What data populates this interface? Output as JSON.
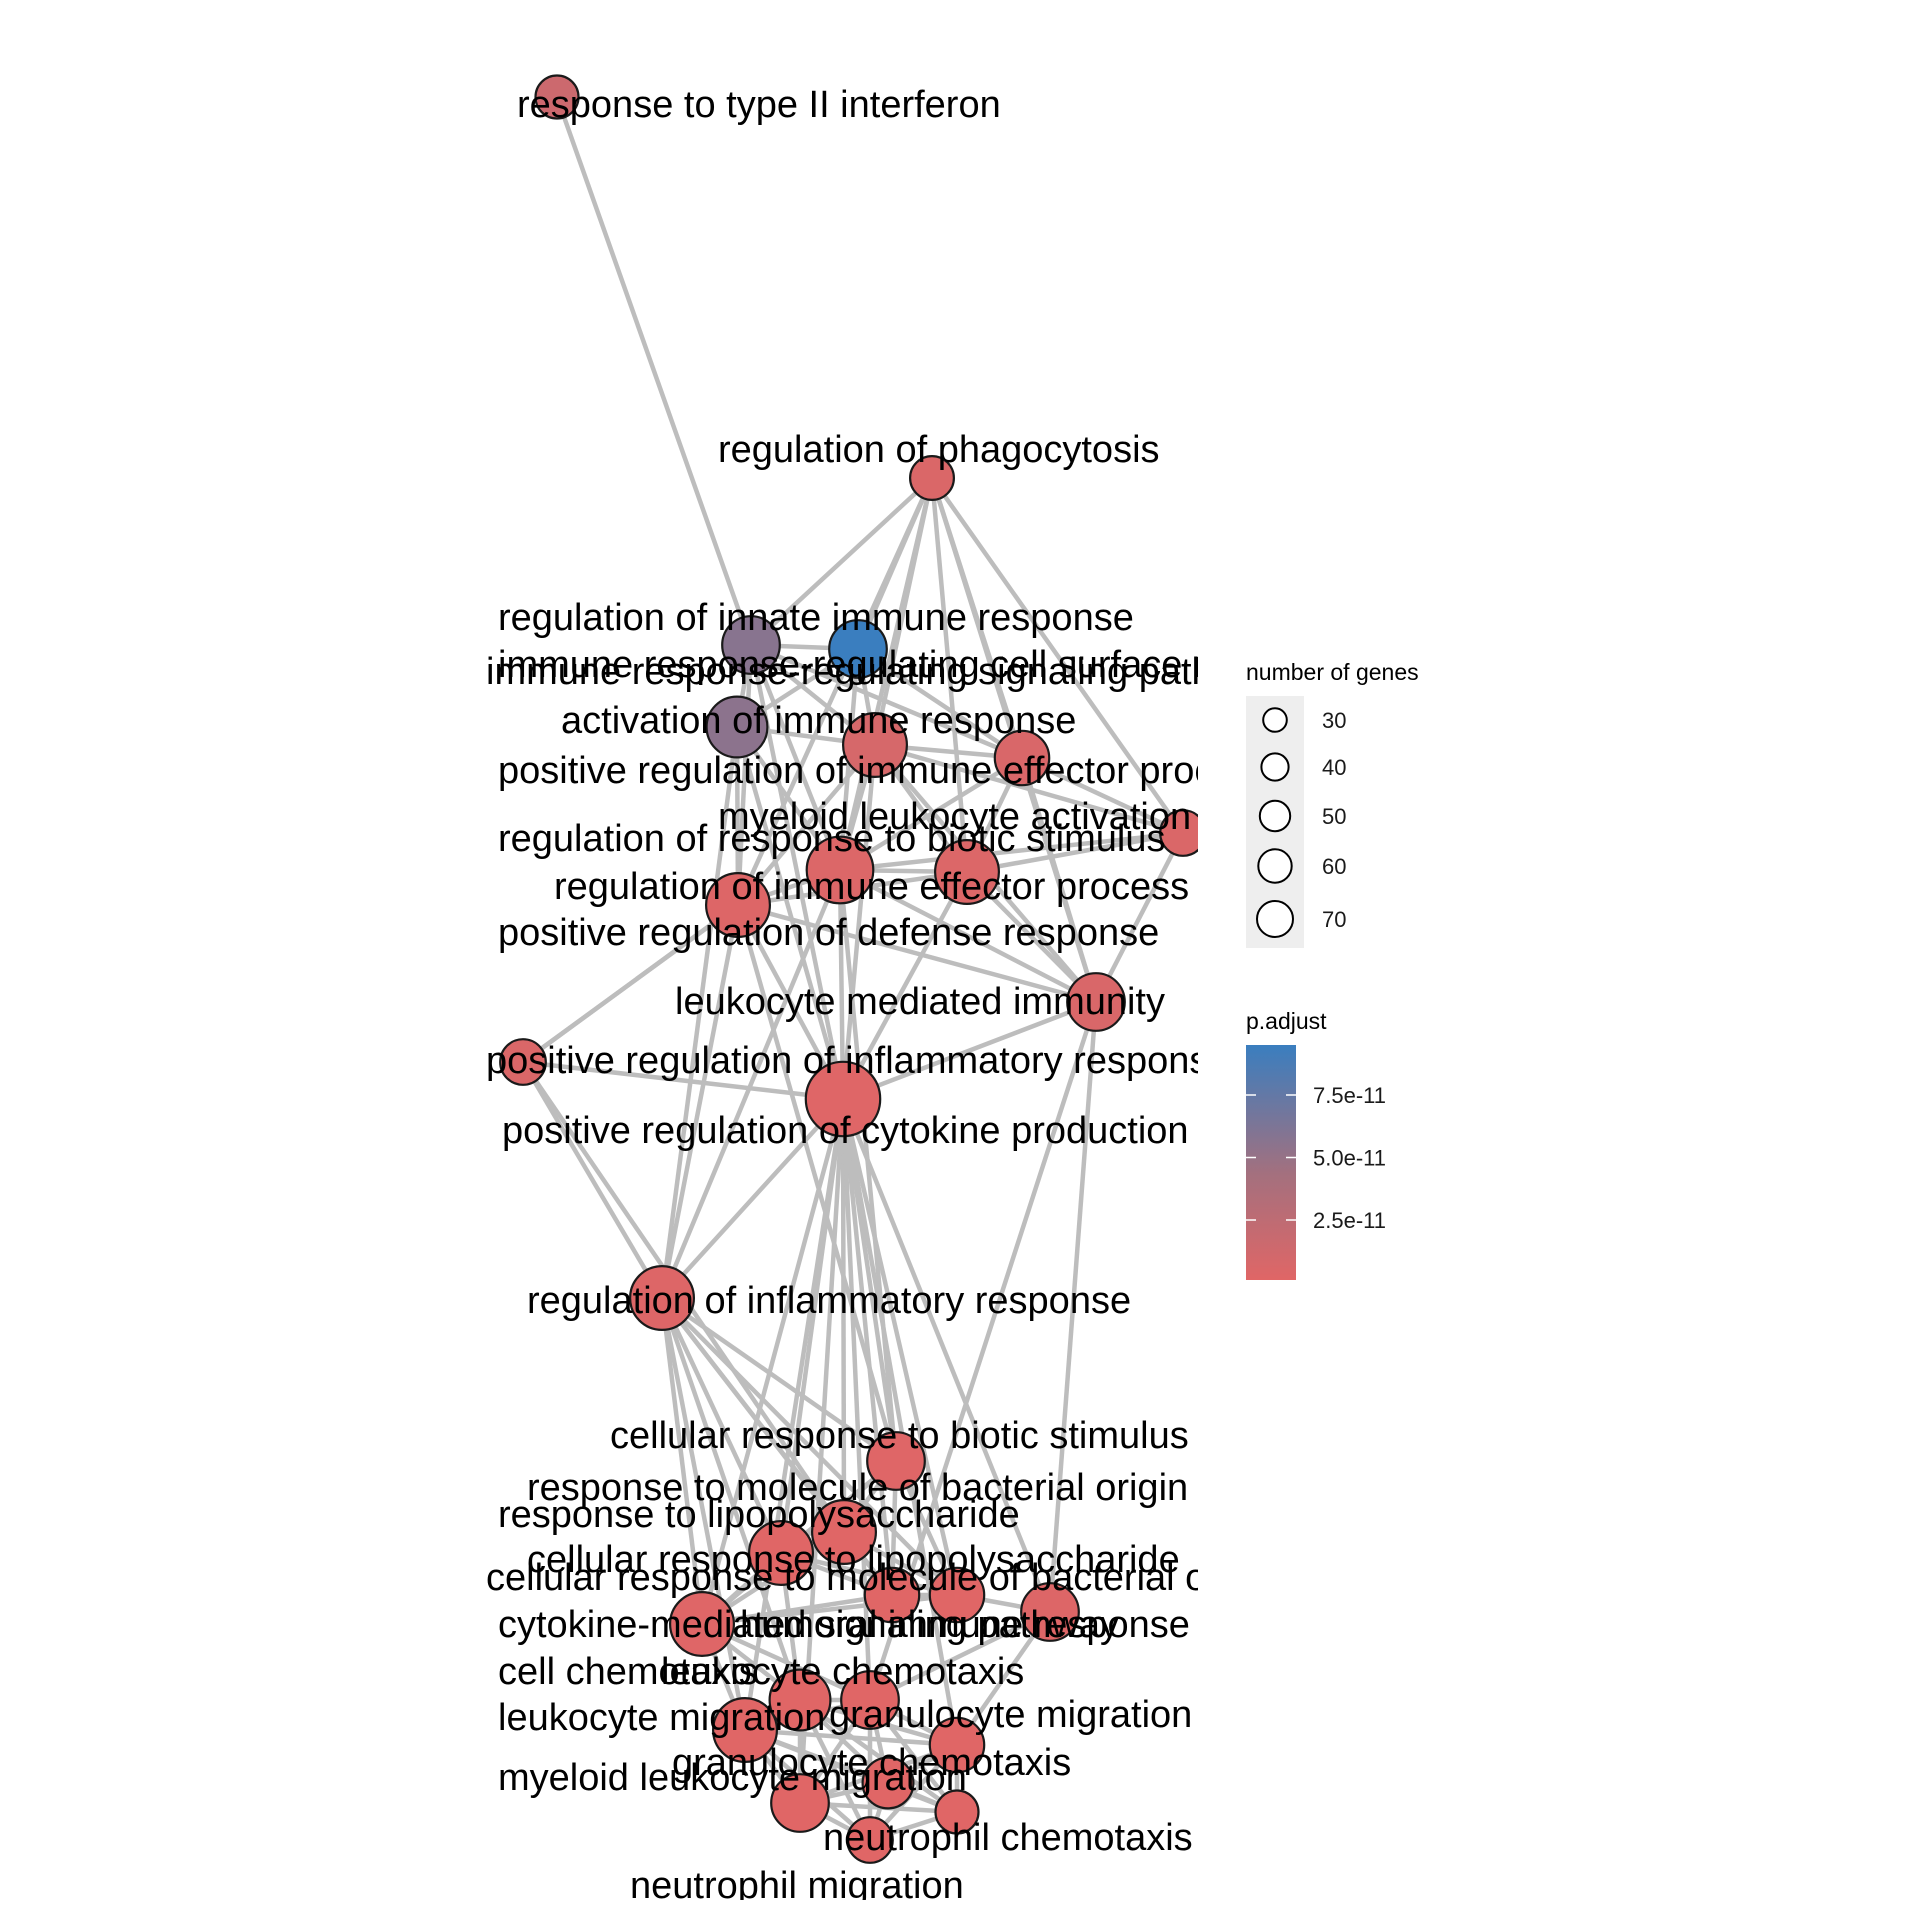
{
  "graph": {
    "nodes": [
      {
        "id": "n1",
        "label": "response to type II interferon",
        "genes": 25,
        "p_adjust": 1.5e-11
      },
      {
        "id": "n2",
        "label": "regulation of phagocytosis",
        "genes": 26,
        "p_adjust": 5e-12
      },
      {
        "id": "n3",
        "label": "regulation of innate immune response",
        "genes": 45,
        "p_adjust": 5.7e-11
      },
      {
        "id": "n4",
        "label": "immune response-regulating cell surface receptor signaling pathway",
        "genes": 45,
        "p_adjust": 9.5e-11
      },
      {
        "id": "n5",
        "label": "immune response-regulating signaling pathway",
        "genes": 50,
        "p_adjust": 5.5e-11
      },
      {
        "id": "n6",
        "label": "activation of immune response",
        "genes": 55,
        "p_adjust": 8e-12
      },
      {
        "id": "n7",
        "label": "positive regulation of immune effector process",
        "genes": 40,
        "p_adjust": 6e-12
      },
      {
        "id": "n8",
        "label": "myeloid leukocyte activation",
        "genes": 28,
        "p_adjust": 5e-12
      },
      {
        "id": "n9",
        "label": "regulation of response to biotic stimulus",
        "genes": 60,
        "p_adjust": 4e-12
      },
      {
        "id": "n10",
        "label": "regulation of immune effector process",
        "genes": 55,
        "p_adjust": 4e-12
      },
      {
        "id": "n11",
        "label": "positive regulation of defense response",
        "genes": 55,
        "p_adjust": 3e-12
      },
      {
        "id": "n12",
        "label": "leukocyte mediated immunity",
        "genes": 45,
        "p_adjust": 6e-12
      },
      {
        "id": "n13",
        "label": "positive regulation of inflammatory response",
        "genes": 28,
        "p_adjust": 5e-12
      },
      {
        "id": "n14",
        "label": "positive regulation of cytokine production",
        "genes": 75,
        "p_adjust": 2e-12
      },
      {
        "id": "n15",
        "label": "regulation of inflammatory response",
        "genes": 55,
        "p_adjust": 3e-12
      },
      {
        "id": "n16",
        "label": "cellular response to biotic stimulus",
        "genes": 45,
        "p_adjust": 2e-12
      },
      {
        "id": "n17",
        "label": "response to molecule of bacterial origin",
        "genes": 55,
        "p_adjust": 1e-12
      },
      {
        "id": "n18",
        "label": "response to lipopolysaccharide",
        "genes": 55,
        "p_adjust": 1e-12
      },
      {
        "id": "n19",
        "label": "cellular response to lipopolysaccharide",
        "genes": 40,
        "p_adjust": 1e-12
      },
      {
        "id": "n20",
        "label": "cellular response to molecule of bacterial origin",
        "genes": 40,
        "p_adjust": 1e-12
      },
      {
        "id": "n21",
        "label": "humoral immune response",
        "genes": 45,
        "p_adjust": 3e-12
      },
      {
        "id": "n22",
        "label": "cytokine-mediated signaling pathway",
        "genes": 55,
        "p_adjust": 2e-12
      },
      {
        "id": "n23",
        "label": "cell chemotaxis",
        "genes": 50,
        "p_adjust": 1e-12
      },
      {
        "id": "n24",
        "label": "leukocyte chemotaxis",
        "genes": 45,
        "p_adjust": 1e-12
      },
      {
        "id": "n25",
        "label": "leukocyte migration",
        "genes": 55,
        "p_adjust": 1e-12
      },
      {
        "id": "n26",
        "label": "granulocyte migration",
        "genes": 40,
        "p_adjust": 1e-12
      },
      {
        "id": "n27",
        "label": "granulocyte chemotaxis",
        "genes": 35,
        "p_adjust": 1e-12
      },
      {
        "id": "n28",
        "label": "myeloid leukocyte migration",
        "genes": 45,
        "p_adjust": 1e-12
      },
      {
        "id": "n29",
        "label": "neutrophil chemotaxis",
        "genes": 25,
        "p_adjust": 1e-12
      },
      {
        "id": "n30",
        "label": "neutrophil migration",
        "genes": 28,
        "p_adjust": 1e-12
      }
    ],
    "edges": [
      [
        "n1",
        "n3"
      ],
      [
        "n2",
        "n3"
      ],
      [
        "n2",
        "n4"
      ],
      [
        "n2",
        "n6"
      ],
      [
        "n2",
        "n7"
      ],
      [
        "n2",
        "n9"
      ],
      [
        "n2",
        "n10"
      ],
      [
        "n2",
        "n12"
      ],
      [
        "n2",
        "n8"
      ],
      [
        "n2",
        "n11"
      ],
      [
        "n3",
        "n4"
      ],
      [
        "n3",
        "n5"
      ],
      [
        "n3",
        "n6"
      ],
      [
        "n3",
        "n9"
      ],
      [
        "n3",
        "n11"
      ],
      [
        "n3",
        "n7"
      ],
      [
        "n3",
        "n14"
      ],
      [
        "n4",
        "n5"
      ],
      [
        "n4",
        "n6"
      ],
      [
        "n4",
        "n7"
      ],
      [
        "n4",
        "n9"
      ],
      [
        "n5",
        "n6"
      ],
      [
        "n5",
        "n9"
      ],
      [
        "n5",
        "n11"
      ],
      [
        "n5",
        "n14"
      ],
      [
        "n5",
        "n15"
      ],
      [
        "n6",
        "n7"
      ],
      [
        "n6",
        "n9"
      ],
      [
        "n6",
        "n11"
      ],
      [
        "n6",
        "n14"
      ],
      [
        "n6",
        "n10"
      ],
      [
        "n6",
        "n8"
      ],
      [
        "n6",
        "n12"
      ],
      [
        "n7",
        "n10"
      ],
      [
        "n7",
        "n12"
      ],
      [
        "n7",
        "n8"
      ],
      [
        "n7",
        "n9"
      ],
      [
        "n8",
        "n12"
      ],
      [
        "n8",
        "n10"
      ],
      [
        "n8",
        "n9"
      ],
      [
        "n9",
        "n10"
      ],
      [
        "n9",
        "n11"
      ],
      [
        "n9",
        "n14"
      ],
      [
        "n9",
        "n15"
      ],
      [
        "n9",
        "n12"
      ],
      [
        "n9",
        "n16"
      ],
      [
        "n10",
        "n12"
      ],
      [
        "n10",
        "n11"
      ],
      [
        "n10",
        "n14"
      ],
      [
        "n11",
        "n13"
      ],
      [
        "n11",
        "n14"
      ],
      [
        "n11",
        "n15"
      ],
      [
        "n11",
        "n12"
      ],
      [
        "n11",
        "n16"
      ],
      [
        "n12",
        "n14"
      ],
      [
        "n12",
        "n21"
      ],
      [
        "n12",
        "n24"
      ],
      [
        "n13",
        "n14"
      ],
      [
        "n13",
        "n15"
      ],
      [
        "n13",
        "n11"
      ],
      [
        "n13",
        "n17"
      ],
      [
        "n14",
        "n15"
      ],
      [
        "n14",
        "n16"
      ],
      [
        "n14",
        "n17"
      ],
      [
        "n14",
        "n18"
      ],
      [
        "n14",
        "n19"
      ],
      [
        "n14",
        "n20"
      ],
      [
        "n14",
        "n22"
      ],
      [
        "n14",
        "n21"
      ],
      [
        "n14",
        "n24"
      ],
      [
        "n14",
        "n25"
      ],
      [
        "n14",
        "n26"
      ],
      [
        "n14",
        "n28"
      ],
      [
        "n15",
        "n16"
      ],
      [
        "n15",
        "n17"
      ],
      [
        "n15",
        "n18"
      ],
      [
        "n15",
        "n19"
      ],
      [
        "n15",
        "n20"
      ],
      [
        "n15",
        "n22"
      ],
      [
        "n15",
        "n23"
      ],
      [
        "n15",
        "n25"
      ],
      [
        "n16",
        "n17"
      ],
      [
        "n16",
        "n18"
      ],
      [
        "n16",
        "n19"
      ],
      [
        "n16",
        "n20"
      ],
      [
        "n16",
        "n22"
      ],
      [
        "n17",
        "n18"
      ],
      [
        "n17",
        "n19"
      ],
      [
        "n17",
        "n20"
      ],
      [
        "n17",
        "n22"
      ],
      [
        "n18",
        "n19"
      ],
      [
        "n18",
        "n20"
      ],
      [
        "n18",
        "n22"
      ],
      [
        "n18",
        "n23"
      ],
      [
        "n19",
        "n20"
      ],
      [
        "n19",
        "n22"
      ],
      [
        "n20",
        "n22"
      ],
      [
        "n20",
        "n21"
      ],
      [
        "n21",
        "n24"
      ],
      [
        "n21",
        "n26"
      ],
      [
        "n22",
        "n23"
      ],
      [
        "n22",
        "n25"
      ],
      [
        "n22",
        "n24"
      ],
      [
        "n23",
        "n24"
      ],
      [
        "n23",
        "n25"
      ],
      [
        "n23",
        "n26"
      ],
      [
        "n23",
        "n27"
      ],
      [
        "n23",
        "n28"
      ],
      [
        "n23",
        "n29"
      ],
      [
        "n23",
        "n30"
      ],
      [
        "n24",
        "n25"
      ],
      [
        "n24",
        "n26"
      ],
      [
        "n24",
        "n27"
      ],
      [
        "n24",
        "n28"
      ],
      [
        "n24",
        "n29"
      ],
      [
        "n24",
        "n30"
      ],
      [
        "n25",
        "n26"
      ],
      [
        "n25",
        "n27"
      ],
      [
        "n25",
        "n28"
      ],
      [
        "n25",
        "n29"
      ],
      [
        "n25",
        "n30"
      ],
      [
        "n26",
        "n27"
      ],
      [
        "n26",
        "n28"
      ],
      [
        "n26",
        "n29"
      ],
      [
        "n26",
        "n30"
      ],
      [
        "n27",
        "n28"
      ],
      [
        "n27",
        "n29"
      ],
      [
        "n27",
        "n30"
      ],
      [
        "n28",
        "n29"
      ],
      [
        "n28",
        "n30"
      ],
      [
        "n29",
        "n30"
      ]
    ]
  },
  "legend": {
    "size_title": "number of genes",
    "size_breaks": [
      "30",
      "40",
      "50",
      "60",
      "70"
    ],
    "size_values": [
      30,
      40,
      50,
      60,
      70
    ],
    "color_title": "p.adjust",
    "color_breaks": [
      "7.5e-11",
      "5.0e-11",
      "2.5e-11"
    ],
    "color_break_values": [
      7.5e-11,
      5e-11,
      2.5e-11
    ],
    "color_range": [
      1e-12,
      9.5e-11
    ],
    "color_low": "#e06666",
    "color_high": "#3a7ebf"
  }
}
